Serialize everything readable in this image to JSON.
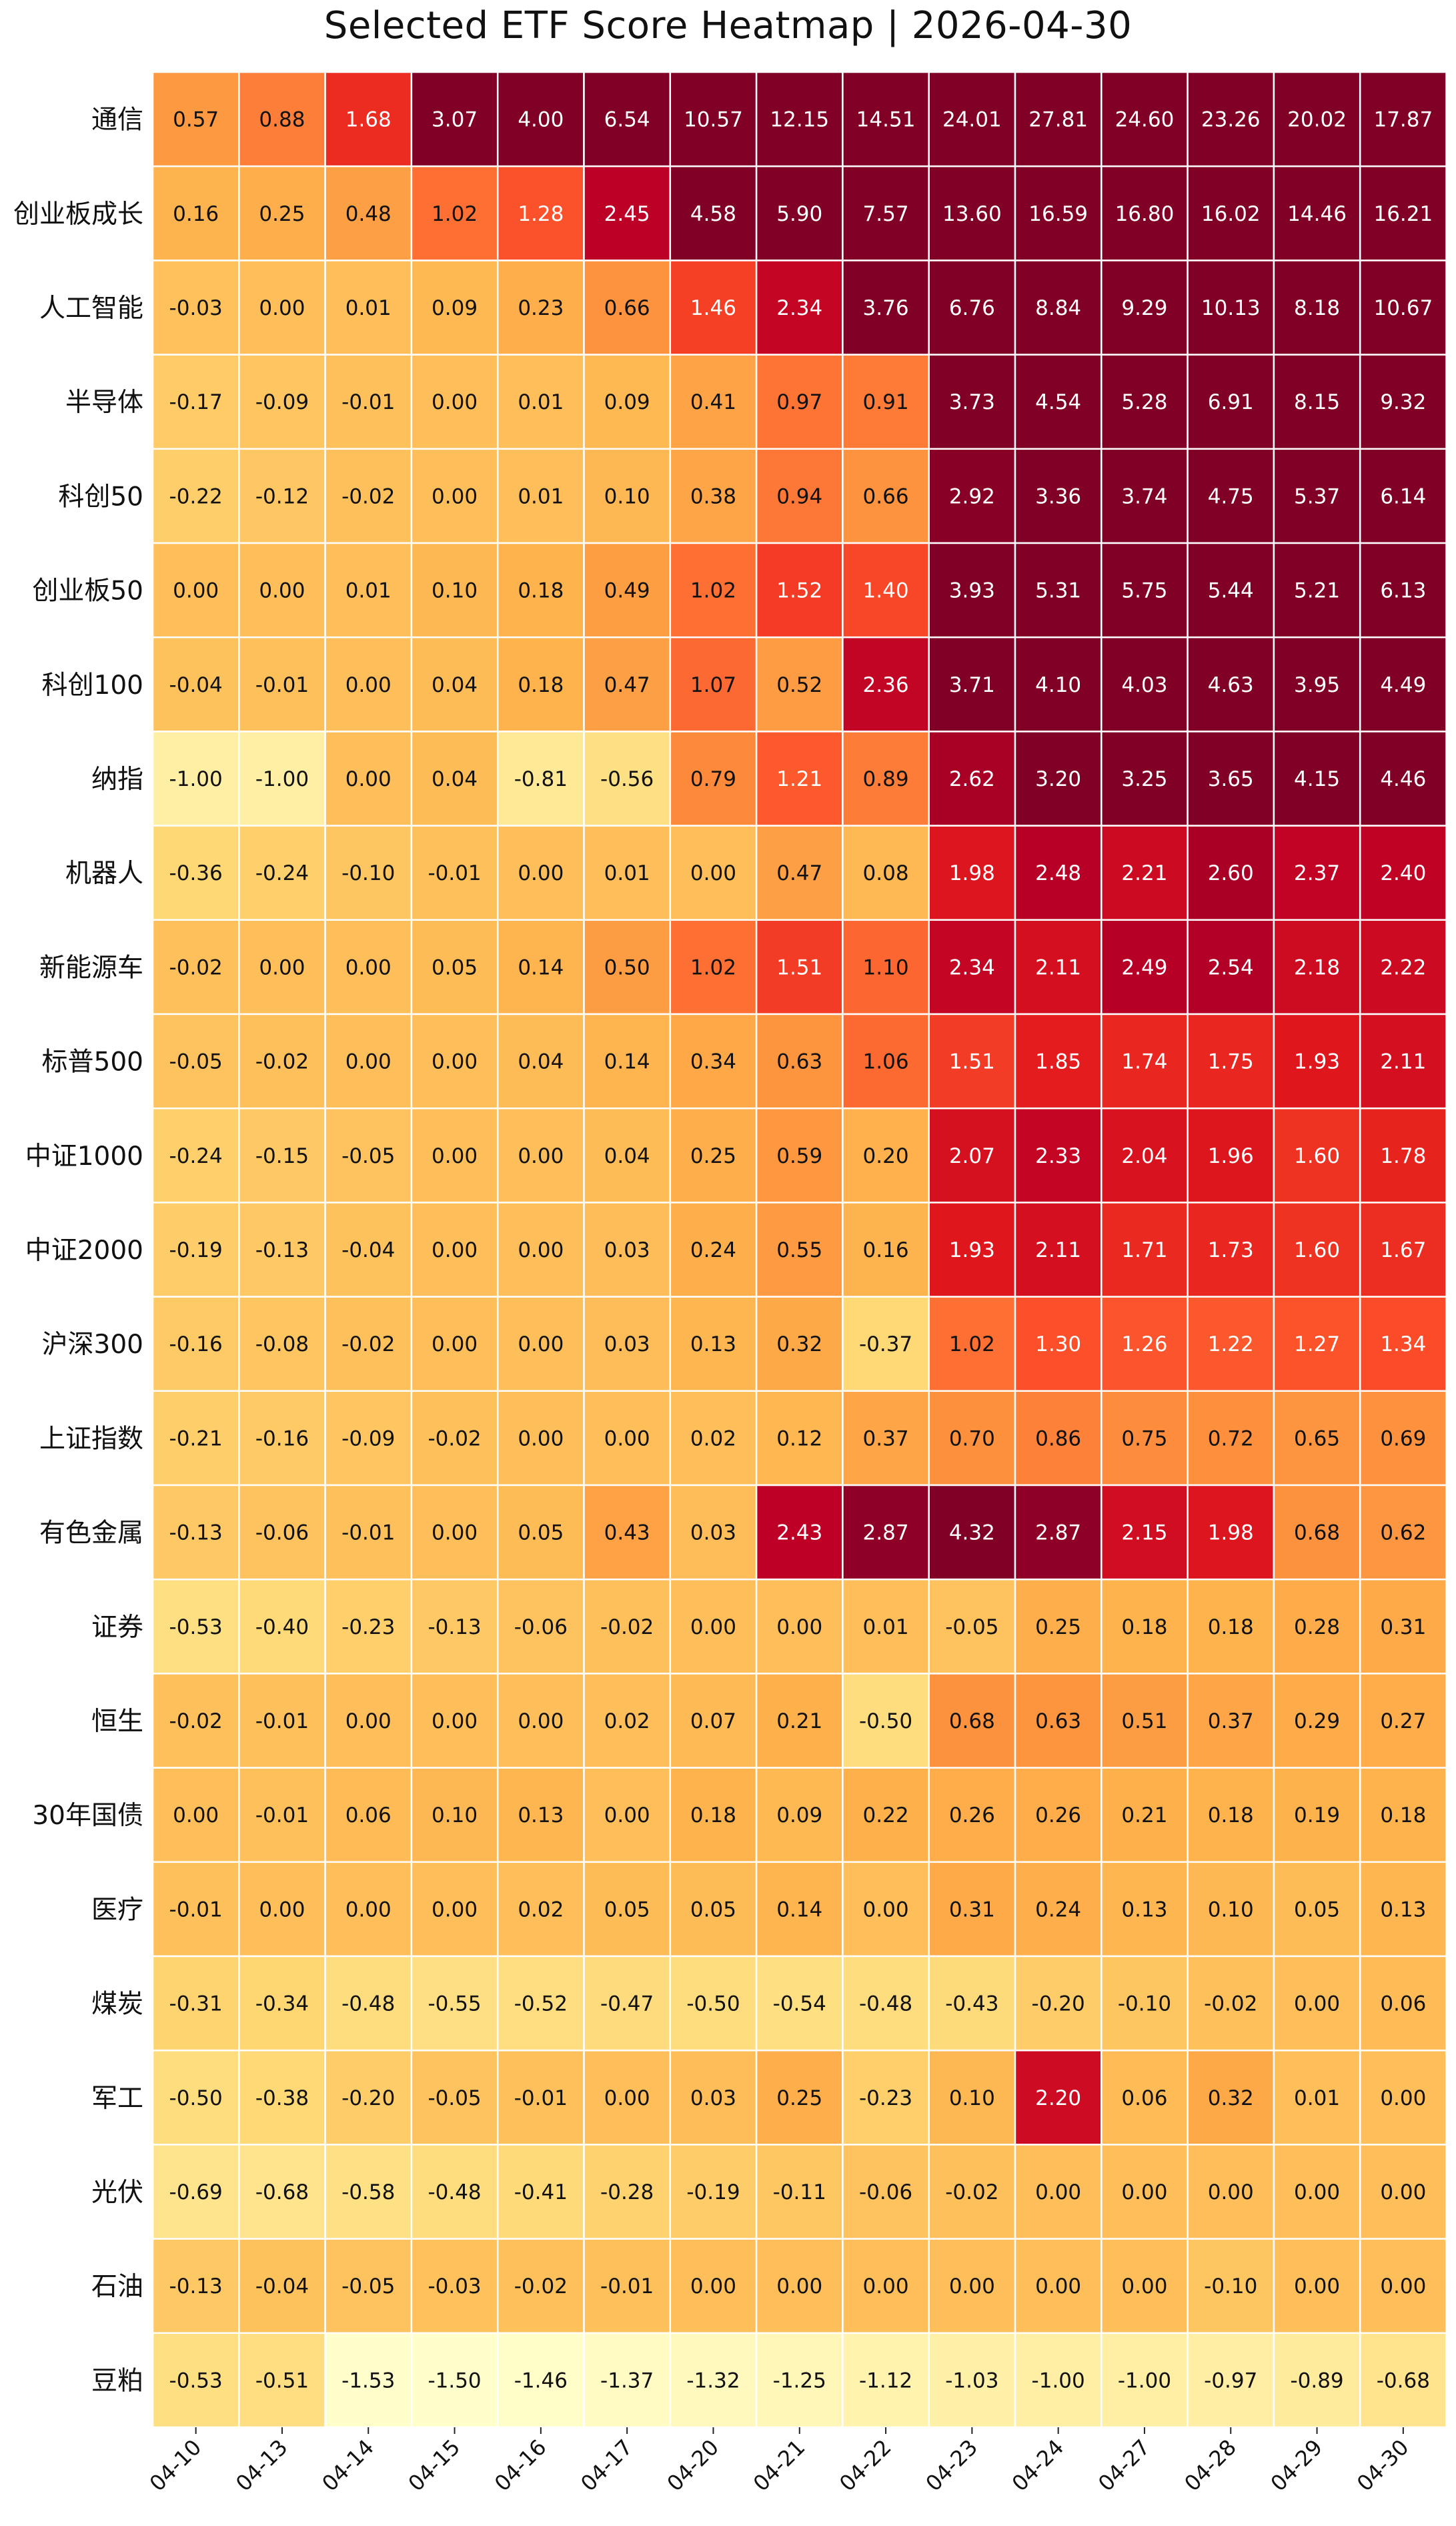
{
  "chart_data": {
    "type": "heatmap",
    "title": "Selected ETF Score Heatmap  |  2026-04-30",
    "columns": [
      "04-10",
      "04-13",
      "04-14",
      "04-15",
      "04-16",
      "04-17",
      "04-20",
      "04-21",
      "04-22",
      "04-23",
      "04-24",
      "04-27",
      "04-28",
      "04-29",
      "04-30"
    ],
    "rows": [
      "通信",
      "创业板成长",
      "人工智能",
      "半导体",
      "科创50",
      "创业板50",
      "科创100",
      "纳指",
      "机器人",
      "新能源车",
      "标普500",
      "中证1000",
      "中证2000",
      "沪深300",
      "上证指数",
      "有色金属",
      "证券",
      "恒生",
      "30年国债",
      "医疗",
      "煤炭",
      "军工",
      "光伏",
      "石油",
      "豆粕"
    ],
    "values": [
      [
        0.57,
        0.88,
        1.68,
        3.07,
        4.0,
        6.54,
        10.57,
        12.15,
        14.51,
        24.01,
        27.81,
        24.6,
        23.26,
        20.02,
        17.87
      ],
      [
        0.16,
        0.25,
        0.48,
        1.02,
        1.28,
        2.45,
        4.58,
        5.9,
        7.57,
        13.6,
        16.59,
        16.8,
        16.02,
        14.46,
        16.21
      ],
      [
        -0.03,
        -0.0,
        0.01,
        0.09,
        0.23,
        0.66,
        1.46,
        2.34,
        3.76,
        6.76,
        8.84,
        9.29,
        10.13,
        8.18,
        10.67
      ],
      [
        -0.17,
        -0.09,
        -0.01,
        0.0,
        0.01,
        0.09,
        0.41,
        0.97,
        0.91,
        3.73,
        4.54,
        5.28,
        6.91,
        8.15,
        9.32
      ],
      [
        -0.22,
        -0.12,
        -0.02,
        0.0,
        0.01,
        0.1,
        0.38,
        0.94,
        0.66,
        2.92,
        3.36,
        3.74,
        4.75,
        5.37,
        6.14
      ],
      [
        -0.0,
        -0.0,
        0.01,
        0.1,
        0.18,
        0.49,
        1.02,
        1.52,
        1.4,
        3.93,
        5.31,
        5.75,
        5.44,
        5.21,
        6.13
      ],
      [
        -0.04,
        -0.01,
        0.0,
        0.04,
        0.18,
        0.47,
        1.07,
        0.52,
        2.36,
        3.71,
        4.1,
        4.03,
        4.63,
        3.95,
        4.49
      ],
      [
        -1.0,
        -1.0,
        0.0,
        0.04,
        -0.81,
        -0.56,
        0.79,
        1.21,
        0.89,
        2.62,
        3.2,
        3.25,
        3.65,
        4.15,
        4.46
      ],
      [
        -0.36,
        -0.24,
        -0.1,
        -0.01,
        -0.0,
        0.01,
        0.0,
        0.47,
        0.08,
        1.98,
        2.48,
        2.21,
        2.6,
        2.37,
        2.4
      ],
      [
        -0.02,
        -0.0,
        0.0,
        0.05,
        0.14,
        0.5,
        1.02,
        1.51,
        1.1,
        2.34,
        2.11,
        2.49,
        2.54,
        2.18,
        2.22
      ],
      [
        -0.05,
        -0.02,
        -0.0,
        0.0,
        0.04,
        0.14,
        0.34,
        0.63,
        1.06,
        1.51,
        1.85,
        1.74,
        1.75,
        1.93,
        2.11
      ],
      [
        -0.24,
        -0.15,
        -0.05,
        -0.0,
        0.0,
        0.04,
        0.25,
        0.59,
        0.2,
        2.07,
        2.33,
        2.04,
        1.96,
        1.6,
        1.78
      ],
      [
        -0.19,
        -0.13,
        -0.04,
        -0.0,
        0.0,
        0.03,
        0.24,
        0.55,
        0.16,
        1.93,
        2.11,
        1.71,
        1.73,
        1.6,
        1.67
      ],
      [
        -0.16,
        -0.08,
        -0.02,
        -0.0,
        0.0,
        0.03,
        0.13,
        0.32,
        -0.37,
        1.02,
        1.3,
        1.26,
        1.22,
        1.27,
        1.34
      ],
      [
        -0.21,
        -0.16,
        -0.09,
        -0.02,
        -0.0,
        0.0,
        0.02,
        0.12,
        0.37,
        0.7,
        0.86,
        0.75,
        0.72,
        0.65,
        0.69
      ],
      [
        -0.13,
        -0.06,
        -0.01,
        0.0,
        0.05,
        0.43,
        0.03,
        2.43,
        2.87,
        4.32,
        2.87,
        2.15,
        1.98,
        0.68,
        0.62
      ],
      [
        -0.53,
        -0.4,
        -0.23,
        -0.13,
        -0.06,
        -0.02,
        -0.0,
        0.0,
        0.01,
        -0.05,
        0.25,
        0.18,
        0.18,
        0.28,
        0.31
      ],
      [
        -0.02,
        -0.01,
        -0.0,
        0.0,
        0.0,
        0.02,
        0.07,
        0.21,
        -0.5,
        0.68,
        0.63,
        0.51,
        0.37,
        0.29,
        0.27
      ],
      [
        -0.0,
        -0.01,
        0.06,
        0.1,
        0.13,
        0.0,
        0.18,
        0.09,
        0.22,
        0.26,
        0.26,
        0.21,
        0.18,
        0.19,
        0.18
      ],
      [
        -0.01,
        -0.0,
        0.0,
        0.0,
        0.02,
        0.05,
        0.05,
        0.14,
        -0.0,
        0.31,
        0.24,
        0.13,
        0.1,
        0.05,
        0.13
      ],
      [
        -0.31,
        -0.34,
        -0.48,
        -0.55,
        -0.52,
        -0.47,
        -0.5,
        -0.54,
        -0.48,
        -0.43,
        -0.2,
        -0.1,
        -0.02,
        0.0,
        0.06
      ],
      [
        -0.5,
        -0.38,
        -0.2,
        -0.05,
        -0.01,
        0.0,
        0.03,
        0.25,
        -0.23,
        0.1,
        2.2,
        0.06,
        0.32,
        0.01,
        0.0
      ],
      [
        -0.69,
        -0.68,
        -0.58,
        -0.48,
        -0.41,
        -0.28,
        -0.19,
        -0.11,
        -0.06,
        -0.02,
        -0.0,
        -0.0,
        0.0,
        0.0,
        0.0
      ],
      [
        -0.13,
        -0.04,
        -0.05,
        -0.03,
        -0.02,
        -0.01,
        -0.0,
        -0.0,
        -0.0,
        -0.0,
        -0.0,
        -0.0,
        -0.1,
        -0.0,
        -0.0
      ],
      [
        -0.53,
        -0.51,
        -1.53,
        -1.5,
        -1.46,
        -1.37,
        -1.32,
        -1.25,
        -1.12,
        -1.03,
        -1.0,
        -1.0,
        -0.97,
        -0.89,
        -0.68
      ]
    ],
    "value_format": "2 decimals",
    "colormap": "YlOrRd",
    "color_range": [
      -1.5,
      3.0
    ],
    "colors": [
      "#ffffcc",
      "#ffeda0",
      "#fed976",
      "#feb24c",
      "#fd8d3c",
      "#fc4e2a",
      "#e31a1c",
      "#bd0026",
      "#800026"
    ],
    "grid": "white cell borders",
    "legend": "none"
  }
}
